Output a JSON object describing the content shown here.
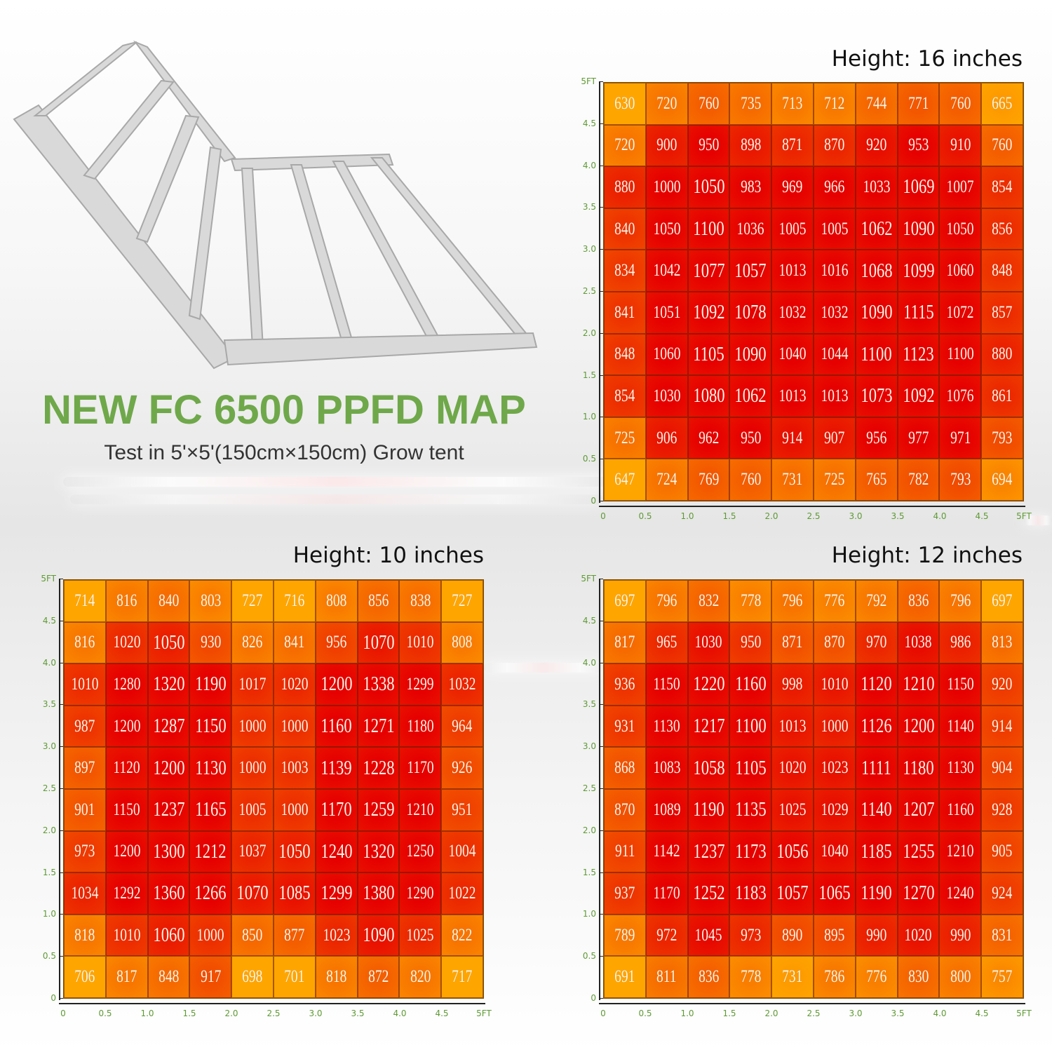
{
  "title": "NEW FC 6500 PPFD MAP",
  "subtitle": "Test in 5'×5'(150cm×150cm) Grow tent",
  "colors": {
    "title": "#6fa84a",
    "low": "#ffa500",
    "high": "#e60000",
    "axis_labels": "#5e9a34"
  },
  "chart_data": [
    {
      "type": "heatmap",
      "title": "Height: 16 inches",
      "x_ticks": [
        "0",
        "0.5",
        "1.0",
        "1.5",
        "2.0",
        "2.5",
        "3.0",
        "3.5",
        "4.0",
        "4.5",
        "5FT"
      ],
      "y_ticks": [
        "5FT",
        "4.5",
        "4.0",
        "3.5",
        "3.0",
        "2.5",
        "2.0",
        "1.5",
        "1.0",
        "0.5",
        "0"
      ],
      "values": [
        [
          630,
          720,
          760,
          735,
          713,
          712,
          744,
          771,
          760,
          665
        ],
        [
          720,
          900,
          950,
          898,
          871,
          870,
          920,
          953,
          910,
          760
        ],
        [
          880,
          1000,
          1050,
          983,
          969,
          966,
          1033,
          1069,
          1007,
          854
        ],
        [
          840,
          1050,
          1100,
          1036,
          1005,
          1005,
          1062,
          1090,
          1050,
          856
        ],
        [
          834,
          1042,
          1077,
          1057,
          1013,
          1016,
          1068,
          1099,
          1060,
          848
        ],
        [
          841,
          1051,
          1092,
          1078,
          1032,
          1032,
          1090,
          1115,
          1072,
          857
        ],
        [
          848,
          1060,
          1105,
          1090,
          1040,
          1044,
          1100,
          1123,
          1100,
          880
        ],
        [
          854,
          1030,
          1080,
          1062,
          1013,
          1013,
          1073,
          1092,
          1076,
          861
        ],
        [
          725,
          906,
          962,
          950,
          914,
          907,
          956,
          977,
          971,
          793
        ],
        [
          647,
          724,
          769,
          760,
          731,
          725,
          765,
          782,
          793,
          694
        ]
      ]
    },
    {
      "type": "heatmap",
      "title": "Height: 10 inches",
      "x_ticks": [
        "0",
        "0.5",
        "1.0",
        "1.5",
        "2.0",
        "2.5",
        "3.0",
        "3.5",
        "4.0",
        "4.5",
        "5FT"
      ],
      "y_ticks": [
        "5FT",
        "4.5",
        "4.0",
        "3.5",
        "3.0",
        "2.5",
        "2.0",
        "1.5",
        "1.0",
        "0.5",
        "0"
      ],
      "values": [
        [
          714,
          816,
          840,
          803,
          727,
          716,
          808,
          856,
          838,
          727
        ],
        [
          816,
          1020,
          1050,
          930,
          826,
          841,
          956,
          1070,
          1010,
          808
        ],
        [
          1010,
          1280,
          1320,
          1190,
          1017,
          1020,
          1200,
          1338,
          1299,
          1032
        ],
        [
          987,
          1200,
          1287,
          1150,
          1000,
          1000,
          1160,
          1271,
          1180,
          964
        ],
        [
          897,
          1120,
          1200,
          1130,
          1000,
          1003,
          1139,
          1228,
          1170,
          926
        ],
        [
          901,
          1150,
          1237,
          1165,
          1005,
          1000,
          1170,
          1259,
          1210,
          951
        ],
        [
          973,
          1200,
          1300,
          1212,
          1037,
          1050,
          1240,
          1320,
          1250,
          1004
        ],
        [
          1034,
          1292,
          1360,
          1266,
          1070,
          1085,
          1299,
          1380,
          1290,
          1022
        ],
        [
          818,
          1010,
          1060,
          1000,
          850,
          877,
          1023,
          1090,
          1025,
          822
        ],
        [
          706,
          817,
          848,
          917,
          698,
          701,
          818,
          872,
          820,
          717
        ]
      ]
    },
    {
      "type": "heatmap",
      "title": "Height: 12 inches",
      "x_ticks": [
        "0",
        "0.5",
        "1.0",
        "1.5",
        "2.0",
        "2.5",
        "3.0",
        "3.5",
        "4.0",
        "4.5",
        "5FT"
      ],
      "y_ticks": [
        "5FT",
        "4.5",
        "4.0",
        "3.5",
        "3.0",
        "2.5",
        "2.0",
        "1.5",
        "1.0",
        "0.5",
        "0"
      ],
      "values": [
        [
          697,
          796,
          832,
          778,
          796,
          776,
          792,
          836,
          796,
          697
        ],
        [
          817,
          965,
          1030,
          950,
          871,
          870,
          970,
          1038,
          986,
          813
        ],
        [
          936,
          1150,
          1220,
          1160,
          998,
          1010,
          1120,
          1210,
          1150,
          920
        ],
        [
          931,
          1130,
          1217,
          1100,
          1013,
          1000,
          1126,
          1200,
          1140,
          914
        ],
        [
          868,
          1083,
          1058,
          1105,
          1020,
          1023,
          1111,
          1180,
          1130,
          904
        ],
        [
          870,
          1089,
          1190,
          1135,
          1025,
          1029,
          1140,
          1207,
          1160,
          928
        ],
        [
          911,
          1142,
          1237,
          1173,
          1056,
          1040,
          1185,
          1255,
          1210,
          905
        ],
        [
          937,
          1170,
          1252,
          1183,
          1057,
          1065,
          1190,
          1270,
          1240,
          924
        ],
        [
          789,
          972,
          1045,
          973,
          890,
          895,
          990,
          1020,
          990,
          831
        ],
        [
          691,
          811,
          836,
          778,
          731,
          786,
          776,
          830,
          800,
          757
        ]
      ]
    }
  ]
}
